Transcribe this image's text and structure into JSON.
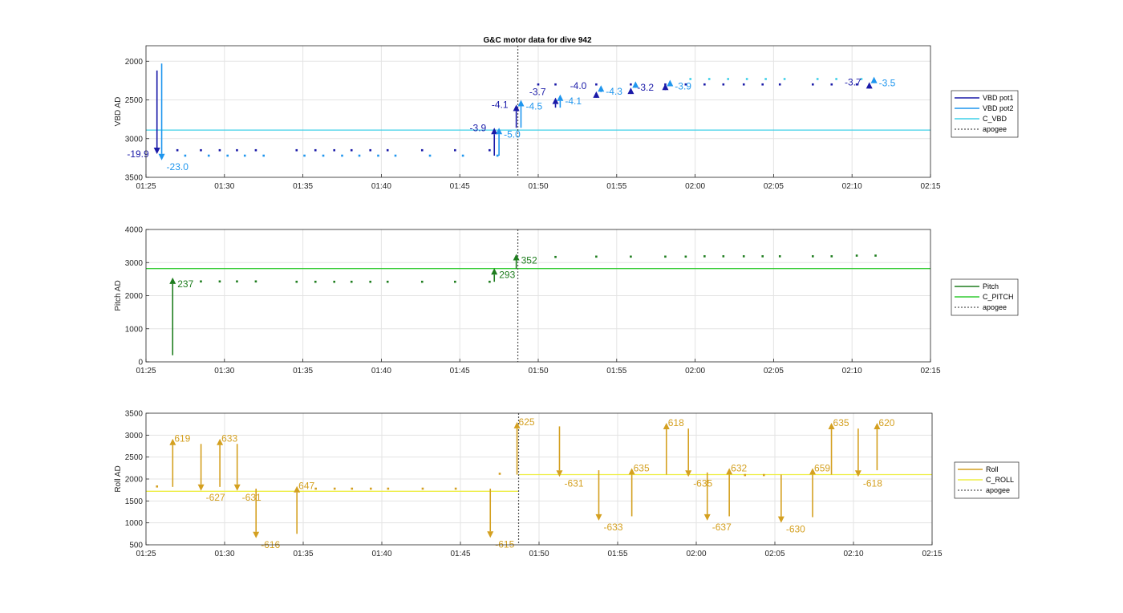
{
  "chart_data": [
    {
      "type": "scatter",
      "title": "G&C motor data for dive 942",
      "ylabel": "VBD AD",
      "xlim": [
        "01:25",
        "02:15"
      ],
      "ylim": [
        1800,
        3500
      ],
      "y_reversed": true,
      "yticks": [
        2000,
        2500,
        3000,
        3500
      ],
      "xticks": [
        "01:25",
        "01:30",
        "01:35",
        "01:40",
        "01:45",
        "01:50",
        "01:55",
        "02:00",
        "02:05",
        "02:10",
        "02:15"
      ],
      "grid": true,
      "legend_position": "outside-right",
      "legend": [
        {
          "name": "VBD pot1",
          "color": "#1a1aa8"
        },
        {
          "name": "VBD pot2",
          "color": "#1f96ee"
        },
        {
          "name": "C_VBD",
          "color": "#3fd0e8"
        },
        {
          "name": "apogee",
          "color": "#555555",
          "dashed": true
        }
      ],
      "reference_line": {
        "name": "C_VBD",
        "value": 2890,
        "color": "#3fd0e8"
      },
      "apogee_time": "01:48.7",
      "series": [
        {
          "name": "VBD pot1",
          "color": "#1a1aa8",
          "points": [
            [
              "01:27.0",
              3150
            ],
            [
              "01:28.5",
              3150
            ],
            [
              "01:29.7",
              3150
            ],
            [
              "01:30.8",
              3150
            ],
            [
              "01:32.0",
              3150
            ],
            [
              "01:34.6",
              3150
            ],
            [
              "01:35.8",
              3150
            ],
            [
              "01:37.0",
              3150
            ],
            [
              "01:38.1",
              3150
            ],
            [
              "01:39.3",
              3150
            ],
            [
              "01:40.4",
              3150
            ],
            [
              "01:42.6",
              3150
            ],
            [
              "01:44.7",
              3150
            ],
            [
              "01:46.9",
              3150
            ],
            [
              "01:50.0",
              2300
            ],
            [
              "01:51.1",
              2300
            ],
            [
              "01:53.7",
              2300
            ],
            [
              "01:55.9",
              2300
            ],
            [
              "01:58.1",
              2300
            ],
            [
              "01:59.4",
              2300
            ],
            [
              "02:00.6",
              2300
            ],
            [
              "02:01.8",
              2300
            ],
            [
              "02:03.1",
              2300
            ],
            [
              "02:04.3",
              2300
            ],
            [
              "02:05.4",
              2300
            ],
            [
              "02:07.5",
              2300
            ],
            [
              "02:08.7",
              2300
            ],
            [
              "02:10.3",
              2300
            ]
          ]
        },
        {
          "name": "VBD pot2",
          "color": "#1f96ee",
          "points": [
            [
              "01:27.5",
              3220
            ],
            [
              "01:29.0",
              3220
            ],
            [
              "01:30.2",
              3220
            ],
            [
              "01:31.3",
              3220
            ],
            [
              "01:32.5",
              3220
            ],
            [
              "01:35.1",
              3220
            ],
            [
              "01:36.3",
              3220
            ],
            [
              "01:37.5",
              3220
            ],
            [
              "01:38.6",
              3220
            ],
            [
              "01:39.8",
              3220
            ],
            [
              "01:40.9",
              3220
            ],
            [
              "01:43.1",
              3220
            ],
            [
              "01:45.2",
              3220
            ],
            [
              "01:47.4",
              3220
            ]
          ]
        },
        {
          "name": "C_VBD",
          "color": "#3fd0e8",
          "points": [
            [
              "01:59.7",
              2230
            ],
            [
              "02:00.9",
              2230
            ],
            [
              "02:02.1",
              2230
            ],
            [
              "02:03.3",
              2230
            ],
            [
              "02:04.5",
              2230
            ],
            [
              "02:05.7",
              2230
            ],
            [
              "02:07.8",
              2230
            ],
            [
              "02:09.0",
              2230
            ],
            [
              "02:10.6",
              2230
            ]
          ]
        }
      ],
      "moves": [
        {
          "t": "01:25.7",
          "from": 2120,
          "to": 3200,
          "color": "#1a1aa8",
          "label": "-19.9",
          "label_side": "left"
        },
        {
          "t": "01:26.0",
          "from": 2030,
          "to": 3280,
          "color": "#1f96ee",
          "label": "-23.0",
          "label_side": "right-below"
        },
        {
          "t": "01:47.2",
          "from": 3220,
          "to": 2860,
          "color": "#1a1aa8",
          "label": "-3.9",
          "label_side": "left"
        },
        {
          "t": "01:47.5",
          "from": 3220,
          "to": 2860,
          "color": "#1f96ee",
          "label": "-5.0",
          "label_side": "right-below"
        },
        {
          "t": "01:48.6",
          "from": 2860,
          "to": 2560,
          "color": "#1a1aa8",
          "label": "-4.1",
          "label_side": "left"
        },
        {
          "t": "01:48.9",
          "from": 2860,
          "to": 2500,
          "color": "#1f96ee",
          "label": "-4.5",
          "label_side": "right-below"
        },
        {
          "t": "01:51.1",
          "from": 2600,
          "to": 2470,
          "color": "#1a1aa8",
          "label": "-3.7",
          "label_side": "above-left"
        },
        {
          "t": "01:51.4",
          "from": 2600,
          "to": 2430,
          "color": "#1f96ee",
          "label": "-4.1",
          "label_side": "right-below"
        },
        {
          "t": "01:53.7",
          "from": 2470,
          "to": 2390,
          "color": "#1a1aa8",
          "label": "-4.0",
          "label_side": "above-left"
        },
        {
          "t": "01:54.0",
          "from": 2400,
          "to": 2310,
          "color": "#1f96ee",
          "label": "-4.3",
          "label_side": "right-below"
        },
        {
          "t": "01:55.9",
          "from": 2360,
          "to": 2340,
          "color": "#1a1aa8",
          "label": "-3.2",
          "label_side": "right"
        },
        {
          "t": "01:56.2",
          "from": 2290,
          "to": 2260,
          "color": "#1f96ee",
          "label": "",
          "label_side": "none"
        },
        {
          "t": "01:58.1",
          "from": 2320,
          "to": 2290,
          "color": "#1a1aa8",
          "label": "",
          "label_side": "none"
        },
        {
          "t": "01:58.4",
          "from": 2270,
          "to": 2240,
          "color": "#1f96ee",
          "label": "-3.9",
          "label_side": "right-below"
        },
        {
          "t": "02:11.1",
          "from": 2300,
          "to": 2270,
          "color": "#1a1aa8",
          "label": "-3.7",
          "label_side": "left"
        },
        {
          "t": "02:11.4",
          "from": 2240,
          "to": 2200,
          "color": "#1f96ee",
          "label": "-3.5",
          "label_side": "right-below"
        }
      ]
    },
    {
      "type": "scatter",
      "ylabel": "Pitch AD",
      "xlim": [
        "01:25",
        "02:15"
      ],
      "ylim": [
        0,
        4000
      ],
      "yticks": [
        0,
        1000,
        2000,
        3000,
        4000
      ],
      "xticks": [
        "01:25",
        "01:30",
        "01:35",
        "01:40",
        "01:45",
        "01:50",
        "01:55",
        "02:00",
        "02:05",
        "02:10",
        "02:15"
      ],
      "grid": true,
      "legend_position": "outside-right",
      "legend": [
        {
          "name": "Pitch",
          "color": "#1e7d1e"
        },
        {
          "name": "C_PITCH",
          "color": "#33cc33"
        },
        {
          "name": "apogee",
          "color": "#555555",
          "dashed": true
        }
      ],
      "reference_line": {
        "name": "C_PITCH",
        "value": 2820,
        "color": "#33cc33"
      },
      "apogee_time": "01:48.7",
      "series": [
        {
          "name": "Pitch",
          "color": "#1e7d1e",
          "points": [
            [
              "01:28.5",
              2430
            ],
            [
              "01:29.7",
              2430
            ],
            [
              "01:30.8",
              2430
            ],
            [
              "01:32.0",
              2430
            ],
            [
              "01:34.6",
              2420
            ],
            [
              "01:35.8",
              2420
            ],
            [
              "01:37.0",
              2420
            ],
            [
              "01:38.1",
              2420
            ],
            [
              "01:39.3",
              2420
            ],
            [
              "01:40.4",
              2420
            ],
            [
              "01:42.6",
              2420
            ],
            [
              "01:44.7",
              2420
            ],
            [
              "01:46.9",
              2420
            ],
            [
              "01:51.1",
              3170
            ],
            [
              "01:53.7",
              3180
            ],
            [
              "01:55.9",
              3180
            ],
            [
              "01:58.1",
              3180
            ],
            [
              "01:59.4",
              3180
            ],
            [
              "02:00.6",
              3190
            ],
            [
              "02:01.8",
              3190
            ],
            [
              "02:03.1",
              3190
            ],
            [
              "02:04.3",
              3190
            ],
            [
              "02:05.4",
              3190
            ],
            [
              "02:07.5",
              3190
            ],
            [
              "02:08.7",
              3190
            ],
            [
              "02:10.3",
              3210
            ],
            [
              "02:11.5",
              3210
            ]
          ]
        }
      ],
      "moves": [
        {
          "t": "01:26.7",
          "from": 200,
          "to": 2550,
          "color": "#1e7d1e",
          "label": "237",
          "label_side": "right-below"
        },
        {
          "t": "01:47.2",
          "from": 2420,
          "to": 2830,
          "color": "#1e7d1e",
          "label": "293",
          "label_side": "right-below"
        },
        {
          "t": "01:48.6",
          "from": 2810,
          "to": 3260,
          "color": "#1e7d1e",
          "label": "352",
          "label_side": "right-below"
        }
      ]
    },
    {
      "type": "scatter",
      "ylabel": "Roll AD",
      "xlim": [
        "01:25",
        "02:15"
      ],
      "ylim": [
        500,
        3500
      ],
      "yticks": [
        500,
        1000,
        1500,
        2000,
        2500,
        3000,
        3500
      ],
      "xticks": [
        "01:25",
        "01:30",
        "01:35",
        "01:40",
        "01:45",
        "01:50",
        "01:55",
        "02:00",
        "02:05",
        "02:10",
        "02:15"
      ],
      "grid": true,
      "legend_position": "outside-right",
      "legend": [
        {
          "name": "Roll",
          "color": "#d4a020"
        },
        {
          "name": "C_ROLL",
          "color": "#eeee44"
        },
        {
          "name": "apogee",
          "color": "#555555",
          "dashed": true
        }
      ],
      "reference_lines": [
        {
          "name": "C_ROLL",
          "from": "01:25",
          "to": "01:48.7",
          "value": 1720,
          "color": "#eeee44"
        },
        {
          "name": "C_ROLL",
          "from": "01:48.7",
          "to": "02:15",
          "value": 2100,
          "color": "#eeee44"
        }
      ],
      "apogee_time": "01:48.7",
      "series": [
        {
          "name": "Roll",
          "color": "#d4a020",
          "points": [
            [
              "01:25.7",
              1830
            ],
            [
              "01:35.8",
              1780
            ],
            [
              "01:37.0",
              1780
            ],
            [
              "01:38.1",
              1780
            ],
            [
              "01:39.3",
              1780
            ],
            [
              "01:40.4",
              1780
            ],
            [
              "01:42.6",
              1780
            ],
            [
              "01:44.7",
              1780
            ],
            [
              "01:47.5",
              2120
            ],
            [
              "02:03.1",
              2090
            ],
            [
              "02:04.3",
              2090
            ]
          ]
        }
      ],
      "moves": [
        {
          "t": "01:26.7",
          "from": 1820,
          "to": 2920,
          "label": "619",
          "label_side": "right-above"
        },
        {
          "t": "01:28.5",
          "from": 2800,
          "to": 1730,
          "label": "-627",
          "label_side": "right-below"
        },
        {
          "t": "01:29.7",
          "from": 1820,
          "to": 2920,
          "label": "633",
          "label_side": "right-above"
        },
        {
          "t": "01:30.8",
          "from": 2800,
          "to": 1730,
          "label": "-631",
          "label_side": "right-below"
        },
        {
          "t": "01:32.0",
          "from": 1780,
          "to": 650,
          "label": "-616",
          "label_side": "right-below"
        },
        {
          "t": "01:34.6",
          "from": 750,
          "to": 1840,
          "label": "647",
          "label_side": "right-above"
        },
        {
          "t": "01:46.9",
          "from": 1780,
          "to": 660,
          "label": "-615",
          "label_side": "right-below"
        },
        {
          "t": "01:48.6",
          "from": 2100,
          "to": 3300,
          "label": "625",
          "label_side": "right-above"
        },
        {
          "t": "01:51.3",
          "from": 3200,
          "to": 2050,
          "label": "-631",
          "label_side": "right-below"
        },
        {
          "t": "01:53.8",
          "from": 2200,
          "to": 1050,
          "label": "-633",
          "label_side": "right-below"
        },
        {
          "t": "01:55.9",
          "from": 1150,
          "to": 2250,
          "label": "635",
          "label_side": "right-above"
        },
        {
          "t": "01:58.1",
          "from": 2100,
          "to": 3280,
          "label": "618",
          "label_side": "right-above"
        },
        {
          "t": "01:59.5",
          "from": 3150,
          "to": 2050,
          "label": "-635",
          "label_side": "right-below"
        },
        {
          "t": "02:00.7",
          "from": 2150,
          "to": 1050,
          "label": "-637",
          "label_side": "right-below"
        },
        {
          "t": "02:02.1",
          "from": 1150,
          "to": 2250,
          "label": "632",
          "label_side": "right-above"
        },
        {
          "t": "02:05.4",
          "from": 2100,
          "to": 1000,
          "label": "-630",
          "label_side": "right-below"
        },
        {
          "t": "02:07.4",
          "from": 1130,
          "to": 2250,
          "label": "659",
          "label_side": "right-above"
        },
        {
          "t": "02:08.6",
          "from": 2100,
          "to": 3280,
          "label": "635",
          "label_side": "right-above"
        },
        {
          "t": "02:10.3",
          "from": 3150,
          "to": 2050,
          "label": "-618",
          "label_side": "right-below"
        },
        {
          "t": "02:11.5",
          "from": 2200,
          "to": 3280,
          "label": "620",
          "label_side": "right-above"
        }
      ]
    }
  ]
}
